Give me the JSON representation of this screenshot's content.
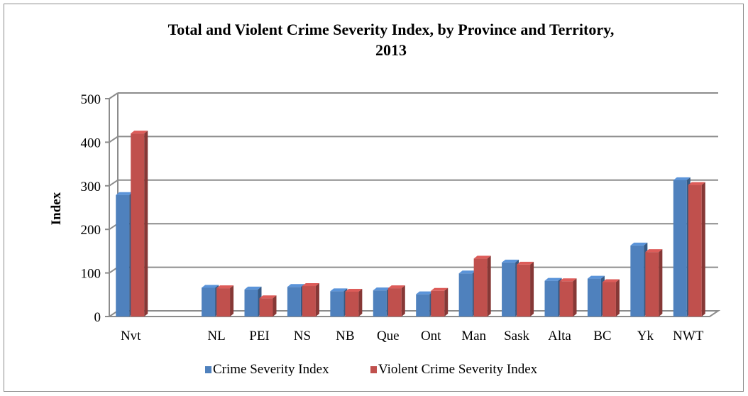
{
  "chart_data": {
    "type": "bar",
    "title_lines": [
      "Total and Violent Crime Severity Index, by Province and Territory,",
      "2013"
    ],
    "xlabel": "",
    "ylabel": "Index",
    "ylim": [
      0,
      500
    ],
    "yticks": [
      0,
      100,
      200,
      300,
      400,
      500
    ],
    "grid": true,
    "legend_position": "bottom",
    "categories": [
      "Nvt",
      "",
      "NL",
      "PEI",
      "NS",
      "NB",
      "Que",
      "Ont",
      "Man",
      "Sask",
      "Alta",
      "BC",
      "Yk",
      "NWT"
    ],
    "series": [
      {
        "name": "Crime Severity Index",
        "color": "#4f81bd",
        "values": [
          279,
          null,
          66,
          62,
          68,
          58,
          60,
          51,
          99,
          124,
          82,
          87,
          163,
          313
        ]
      },
      {
        "name": "Violent Crime Severity Index",
        "color": "#c0504d",
        "values": [
          420,
          null,
          65,
          42,
          70,
          57,
          65,
          59,
          133,
          119,
          81,
          79,
          148,
          302
        ]
      }
    ]
  }
}
